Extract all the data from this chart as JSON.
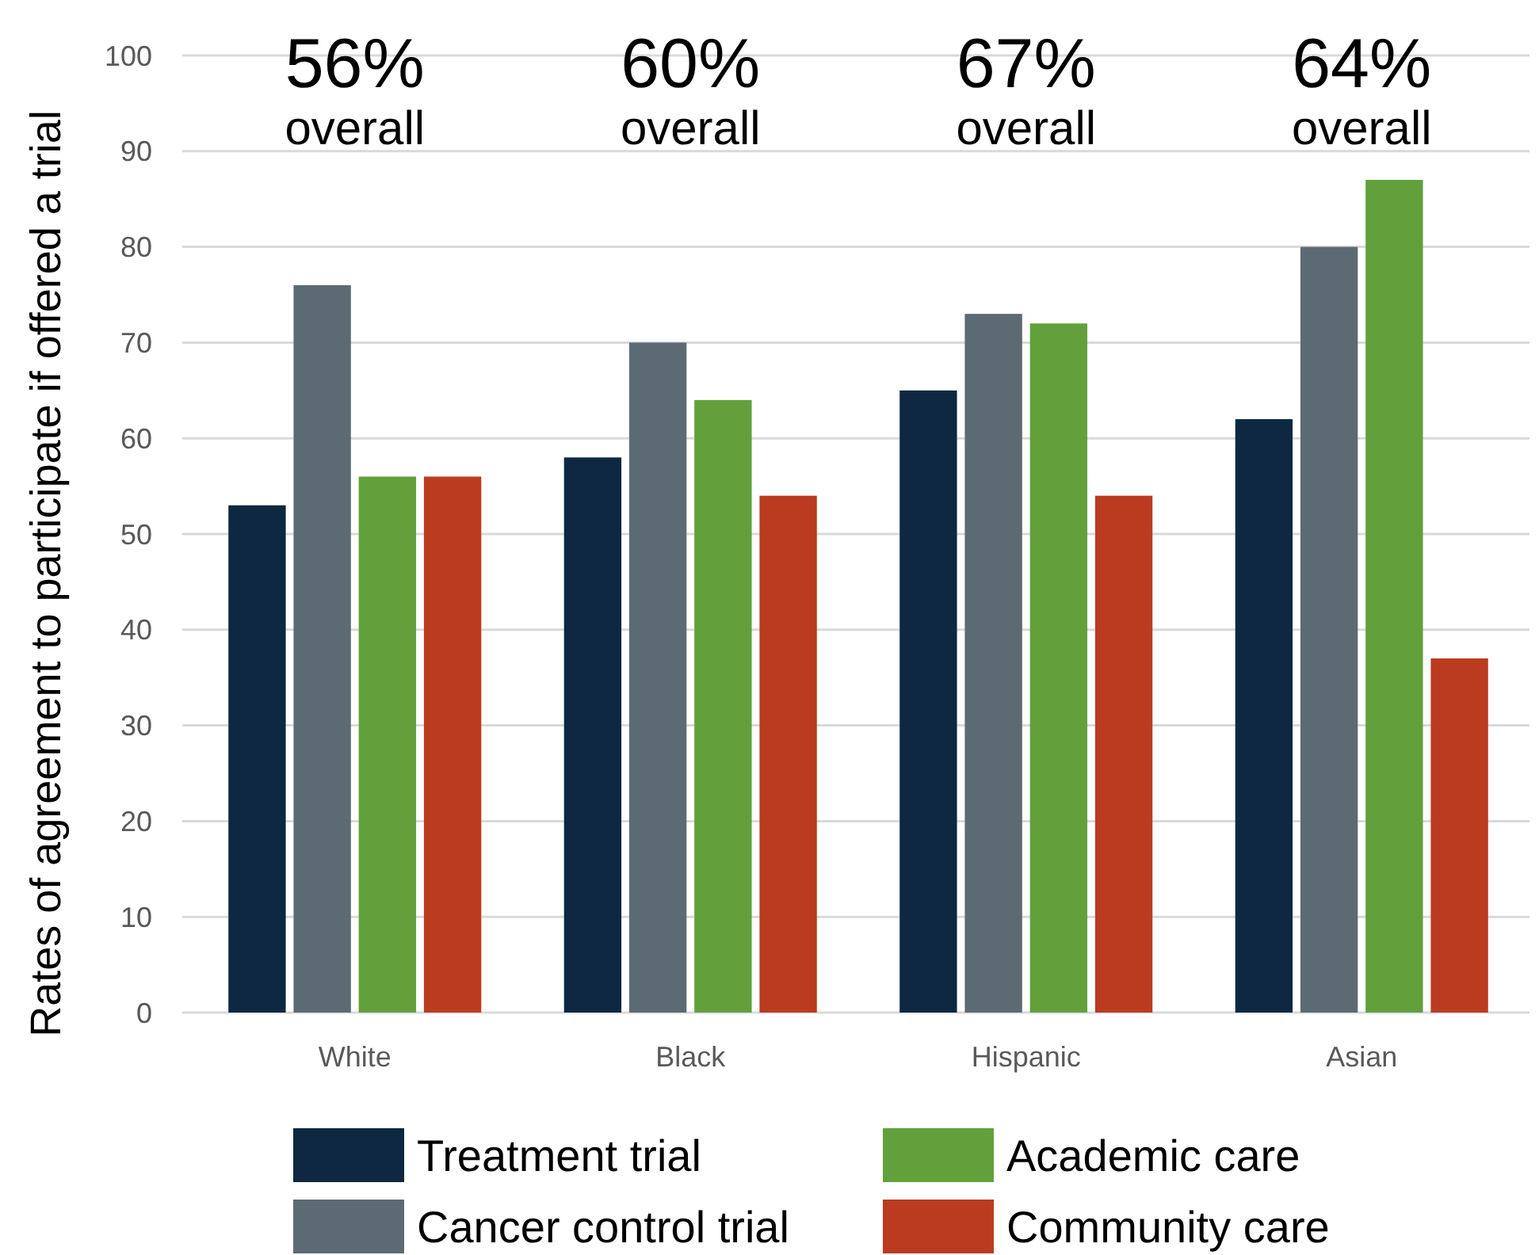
{
  "chart_data": {
    "type": "bar",
    "ylabel": "Rates of agreement to participate if offered a trial",
    "categories": [
      "White",
      "Black",
      "Hispanic",
      "Asian"
    ],
    "series": [
      {
        "name": "Treatment trial",
        "color": "#0d2840",
        "values": [
          53,
          58,
          65,
          62
        ]
      },
      {
        "name": "Cancer control trial",
        "color": "#5c6b73",
        "values": [
          76,
          70,
          73,
          80
        ]
      },
      {
        "name": "Academic care",
        "color": "#62a03c",
        "values": [
          56,
          64,
          72,
          87
        ]
      },
      {
        "name": "Community care",
        "color": "#bb3b20",
        "values": [
          56,
          54,
          54,
          37
        ]
      }
    ],
    "ylim": [
      0,
      100
    ],
    "yticks": [
      0,
      10,
      20,
      30,
      40,
      50,
      60,
      70,
      80,
      90,
      100
    ],
    "grid": "y",
    "legend": "bottom",
    "annotations": [
      "56%\noverall",
      "60%\noverall",
      "67%\noverall",
      "64%\noverall"
    ]
  }
}
